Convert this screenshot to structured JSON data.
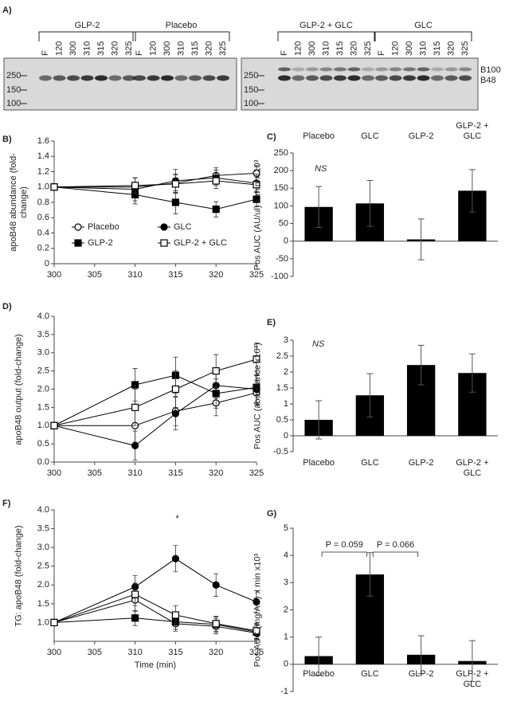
{
  "blot": {
    "panel": "A)",
    "groups": [
      {
        "label": "GLP-2",
        "lanes": [
          "F",
          "120",
          "300",
          "310",
          "315",
          "320",
          "325"
        ]
      },
      {
        "label": "Placebo",
        "lanes": [
          "F",
          "120",
          "300",
          "310",
          "315",
          "320",
          "325"
        ]
      },
      {
        "label": "GLP-2 + GLC",
        "lanes": [
          "F",
          "120",
          "300",
          "310",
          "315",
          "320",
          "325"
        ]
      },
      {
        "label": "GLC",
        "lanes": [
          "F",
          "120",
          "300",
          "310",
          "315",
          "320",
          "325"
        ]
      }
    ],
    "markers": [
      "250",
      "150",
      "100"
    ],
    "bands": [
      "B100",
      "B48"
    ]
  },
  "chart_data": [
    {
      "panel": "B)",
      "type": "line",
      "ylabel": "apoB48 abundance (fold-change)",
      "x": [
        300,
        310,
        315,
        320,
        325
      ],
      "xlim": [
        300,
        325
      ],
      "xticks": [
        300,
        305,
        310,
        315,
        320,
        325
      ],
      "ylim": [
        0,
        1.6
      ],
      "yticks": [
        0,
        0.2,
        0.4,
        0.6,
        0.8,
        {
          "value": 1,
          "label": "1.0"
        },
        1.2,
        1.4,
        1.6
      ],
      "legend": true,
      "series": [
        {
          "name": "Placebo",
          "marker": "open-circle",
          "color": "#000000",
          "values": [
            1.0,
            1.0,
            1.05,
            1.15,
            1.18
          ],
          "errors": [
            0.02,
            0.12,
            0.12,
            0.1,
            0.1
          ]
        },
        {
          "name": "GLC",
          "marker": "filled-circle",
          "color": "#000000",
          "values": [
            1.0,
            0.97,
            1.08,
            1.12,
            1.05
          ],
          "errors": [
            0.02,
            0.15,
            0.15,
            0.1,
            0.12
          ]
        },
        {
          "name": "GLP-2",
          "marker": "filled-square",
          "color": "#000000",
          "values": [
            1.0,
            0.9,
            0.8,
            0.71,
            0.84
          ],
          "errors": [
            0.02,
            0.12,
            0.15,
            0.1,
            0.1
          ]
        },
        {
          "name": "GLP-2 + GLC",
          "marker": "open-square",
          "color": "#000000",
          "values": [
            1.0,
            1.02,
            1.04,
            1.08,
            1.03
          ],
          "errors": [
            0.02,
            0.1,
            0.12,
            0.1,
            0.1
          ]
        }
      ]
    },
    {
      "panel": "C)",
      "type": "bar",
      "ylabel": "Pos AUC (AU/ul) x min x 10³",
      "annotation": "NS",
      "categories": [
        "Placebo",
        "GLC",
        "GLP-2",
        "GLP-2 + GLC"
      ],
      "category_position": "top",
      "values": [
        97,
        107,
        5,
        143
      ],
      "errors": [
        58,
        65,
        58,
        60
      ],
      "color": "#000000",
      "ylim": [
        -100,
        250
      ],
      "yticks": [
        -100,
        -50,
        0,
        50,
        100,
        150,
        200,
        250
      ]
    },
    {
      "panel": "D)",
      "type": "line",
      "ylabel": "apoB48 output (fold-change)",
      "x": [
        300,
        310,
        315,
        320,
        325
      ],
      "xlim": [
        300,
        325
      ],
      "xticks": [
        300,
        305,
        310,
        315,
        320,
        325
      ],
      "ylim": [
        0,
        4
      ],
      "yticks": [
        {
          "value": 0,
          "label": "0.0"
        },
        0.5,
        {
          "value": 1,
          "label": "1.0"
        },
        1.5,
        {
          "value": 2,
          "label": "2.0"
        },
        2.5,
        {
          "value": 3,
          "label": "3.0"
        },
        3.5,
        {
          "value": 4,
          "label": "4.0"
        }
      ],
      "series": [
        {
          "marker": "open-circle",
          "color": "#000000",
          "values": [
            1.0,
            1.0,
            1.4,
            1.62,
            1.9
          ],
          "errors": [
            0.05,
            0.45,
            0.4,
            0.35,
            0.35
          ]
        },
        {
          "marker": "filled-circle",
          "color": "#000000",
          "values": [
            1.0,
            0.45,
            1.33,
            2.1,
            2.0
          ],
          "errors": [
            0.05,
            0.4,
            0.45,
            0.35,
            0.4
          ]
        },
        {
          "marker": "filled-square",
          "color": "#000000",
          "values": [
            1.0,
            2.12,
            2.38,
            1.88,
            2.05
          ],
          "errors": [
            0.05,
            0.45,
            0.5,
            0.4,
            0.45
          ]
        },
        {
          "marker": "open-square",
          "color": "#000000",
          "values": [
            1.0,
            1.5,
            2.0,
            2.5,
            2.82
          ],
          "errors": [
            0.05,
            0.5,
            0.5,
            0.45,
            0.45
          ]
        }
      ]
    },
    {
      "panel": "E)",
      "type": "bar",
      "ylabel": "Pos AUC (abundance x10³)",
      "annotation": "NS",
      "categories": [
        "Placebo",
        "GLC",
        "GLP-2",
        "GLP-2 + GLC"
      ],
      "category_position": "bottom",
      "values": [
        0.5,
        1.27,
        2.22,
        1.97
      ],
      "errors": [
        0.6,
        0.68,
        0.62,
        0.6
      ],
      "color": "#000000",
      "ylim": [
        -0.5,
        3
      ],
      "yticks": [
        -0.5,
        0,
        0.5,
        1,
        1.5,
        2,
        2.5,
        3
      ]
    },
    {
      "panel": "F)",
      "type": "line",
      "ylabel": "TG: apoB48 (fold-change)",
      "xlabel": "Time (min)",
      "annotation": "*",
      "x": [
        300,
        310,
        315,
        320,
        325
      ],
      "xlim": [
        300,
        325
      ],
      "xticks": [
        300,
        305,
        310,
        315,
        320,
        325
      ],
      "ylim": [
        0.5,
        4
      ],
      "yticks": [
        {
          "value": 1,
          "label": "1.0"
        },
        1.5,
        {
          "value": 2,
          "label": "2.0"
        },
        2.5,
        {
          "value": 3,
          "label": "3.0"
        },
        3.5,
        {
          "value": 4,
          "label": "4.0"
        }
      ],
      "series": [
        {
          "marker": "open-circle",
          "color": "#000000",
          "values": [
            1.0,
            1.6,
            0.97,
            0.9,
            0.72
          ],
          "errors": [
            0.05,
            0.3,
            0.2,
            0.2,
            0.2
          ]
        },
        {
          "marker": "filled-circle",
          "color": "#000000",
          "values": [
            1.0,
            1.95,
            2.7,
            2.0,
            1.55
          ],
          "errors": [
            0.05,
            0.3,
            0.35,
            0.3,
            0.3
          ]
        },
        {
          "marker": "filled-square",
          "color": "#000000",
          "values": [
            1.0,
            1.12,
            1.02,
            0.95,
            0.75
          ],
          "errors": [
            0.05,
            0.2,
            0.2,
            0.2,
            0.2
          ]
        },
        {
          "marker": "open-square",
          "color": "#000000",
          "values": [
            1.0,
            1.75,
            1.2,
            0.97,
            0.78
          ],
          "errors": [
            0.05,
            0.3,
            0.25,
            0.2,
            0.2
          ]
        }
      ]
    },
    {
      "panel": "G)",
      "type": "bar",
      "ylabel": "Pos AUC (mg/AU) x min x10³",
      "categories": [
        "Placebo",
        "GLC",
        "GLP-2",
        "GLP-2 + GLC"
      ],
      "category_position": "zero",
      "values": [
        0.3,
        3.3,
        0.35,
        0.12
      ],
      "errors": [
        0.7,
        0.8,
        0.7,
        0.75
      ],
      "color": "#000000",
      "ylim": [
        -1,
        5
      ],
      "yticks": [
        -1,
        0,
        1,
        2,
        3,
        4,
        5
      ],
      "comparisons": [
        {
          "label": "P = 0.059",
          "from": 0,
          "to": 1
        },
        {
          "label": "P = 0.066",
          "from": 1,
          "to": 2
        }
      ]
    }
  ]
}
